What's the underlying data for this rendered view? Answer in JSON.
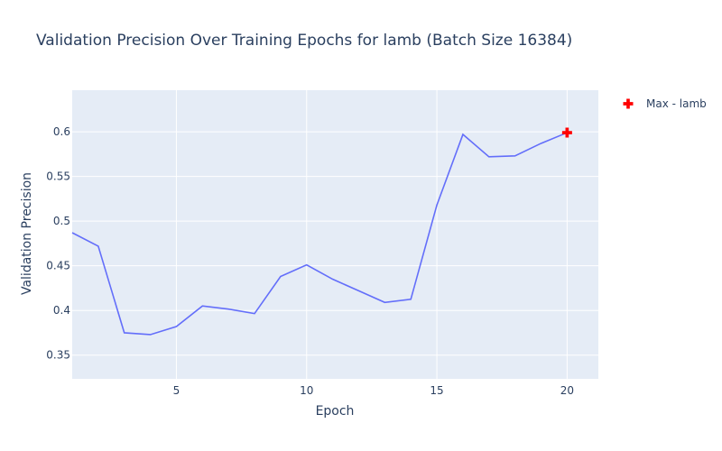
{
  "chart_data": {
    "type": "line",
    "title": "Validation Precision Over Training Epochs for lamb (Batch Size 16384)",
    "xlabel": "Epoch",
    "ylabel": "Validation Precision",
    "xlim": [
      1,
      21.2
    ],
    "ylim": [
      0.3235,
      0.6465
    ],
    "xticks": [
      5,
      10,
      15,
      20
    ],
    "yticks": [
      0.35,
      0.4,
      0.45,
      0.5,
      0.55,
      0.6
    ],
    "ytick_labels": [
      "0.35",
      "0.4",
      "0.45",
      "0.5",
      "0.55",
      "0.6"
    ],
    "series": [
      {
        "name": "lamb",
        "color": "#636efa",
        "x": [
          1,
          2,
          3,
          4,
          5,
          6,
          7,
          8,
          9,
          10,
          11,
          12,
          13,
          14,
          15,
          16,
          17,
          18,
          19,
          20
        ],
        "y": [
          0.487,
          0.472,
          0.375,
          0.373,
          0.382,
          0.405,
          0.4015,
          0.3965,
          0.438,
          0.451,
          0.435,
          0.422,
          0.409,
          0.4125,
          0.518,
          0.597,
          0.572,
          0.573,
          0.587,
          0.599
        ]
      }
    ],
    "markers": [
      {
        "name": "Max - lamb",
        "x": 20,
        "y": 0.599,
        "symbol": "cross",
        "color": "#ff0000"
      }
    ],
    "legend": {
      "position": "top-right",
      "entries": [
        "Max - lamb"
      ]
    },
    "grid": true,
    "plot_bg": "#e5ecf6"
  }
}
